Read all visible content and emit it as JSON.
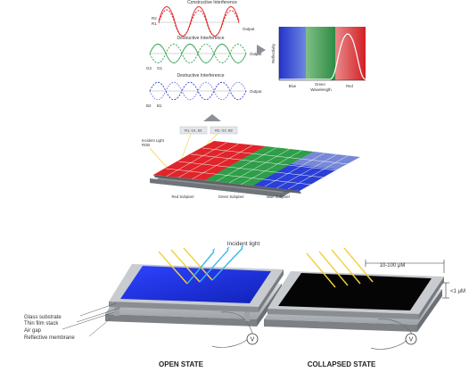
{
  "top": {
    "constructive_title": "Constructive Interference",
    "destructive_title_green": "Destructive Interference",
    "destructive_title_blue": "Destructive Interference",
    "output_red": "Output",
    "output_green": "Output",
    "output_blue": "Output",
    "label_r2": "R2",
    "label_r1": "R1",
    "label_g2": "G2",
    "label_g1": "G1",
    "label_b2": "B2",
    "label_b1": "B1",
    "reflectivity_axis": "Reflectivity",
    "wavelength_axis": "Wavelength",
    "spectrum_blue": "Blue",
    "spectrum_green": "Green",
    "spectrum_red": "Red",
    "incident_light": "Incident Light",
    "incident_rgb": "RGB",
    "callout_1": "R1, G1, B1",
    "callout_2": "R2, G2, B2",
    "subpixel_red": "Red Subpixel",
    "subpixel_green": "Green Subpixel",
    "subpixel_blue": "Blue Subpixel"
  },
  "bottom": {
    "incident_light": "Incident light",
    "dimension_width": "10-100 μM",
    "dimension_gap": "<1 μM",
    "layer_glass": "Glass substrate",
    "layer_film": "Thin film stack",
    "layer_air": "Air gap",
    "layer_membrane": "Reflective membrane",
    "voltage_symbol_left": "V",
    "voltage_symbol_right": "V",
    "state_open": "OPEN STATE",
    "state_collapsed": "COLLAPSED STATE"
  },
  "colors": {
    "red": "#e0242a",
    "green": "#2e9e48",
    "blue": "#2a3fd8",
    "open_panel": "#1f2fe8",
    "collapsed_panel": "#050505",
    "metal": "#b9bcc0",
    "light_yellow": "#f4d03f",
    "light_blue": "#3bb8e8"
  }
}
